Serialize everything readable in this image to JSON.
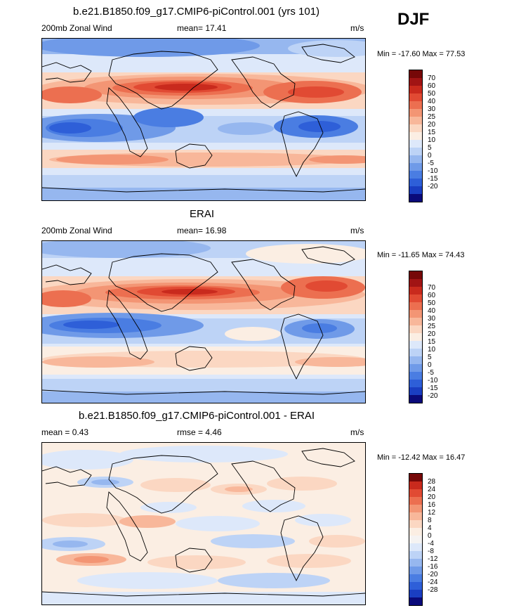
{
  "season": "DJF",
  "colors": {
    "model_erai_scale": [
      "#0a0a7a",
      "#1a3ec2",
      "#2e5fd8",
      "#4a7de2",
      "#6f9ae8",
      "#96b7ef",
      "#bdd3f6",
      "#dde8fa",
      "#fbeee3",
      "#fbd7c2",
      "#f8b79a",
      "#f39574",
      "#ec6f50",
      "#e14a33",
      "#c92a1d",
      "#a11414",
      "#760808"
    ],
    "diff_scale": [
      "#0a0a7a",
      "#1a3ec2",
      "#2e5fd8",
      "#4a7de2",
      "#6f9ae8",
      "#96b7ef",
      "#bdd3f6",
      "#dde8fa",
      "#f5f3f2",
      "#fbeee3",
      "#fbd7c2",
      "#f8b79a",
      "#f39574",
      "#ec6f50",
      "#e14a33",
      "#c92a1d",
      "#760808"
    ]
  },
  "panels": [
    {
      "title": "b.e21.B1850.f09_g17.CMIP6-piControl.001 (yrs 101)",
      "left_label": "200mb Zonal Wind",
      "center_label": "mean=  17.41",
      "units": "m/s",
      "minmax": "Min = -17.60 Max =  77.53",
      "cbar_labels": [
        "70",
        "60",
        "50",
        "40",
        "30",
        "25",
        "20",
        "15",
        "10",
        "5",
        "0",
        "-5",
        "-10",
        "-15",
        "-20"
      ]
    },
    {
      "title": "ERAI",
      "left_label": "200mb Zonal Wind",
      "center_label": "mean=  16.98",
      "units": "m/s",
      "minmax": "Min = -11.65 Max =  74.43",
      "cbar_labels": [
        "70",
        "60",
        "50",
        "40",
        "30",
        "25",
        "20",
        "15",
        "10",
        "5",
        "0",
        "-5",
        "-10",
        "-15",
        "-20"
      ]
    },
    {
      "title": "b.e21.B1850.f09_g17.CMIP6-piControl.001 - ERAI",
      "left_label": "mean =   0.43",
      "center_label": "rmse =   4.46",
      "units": "m/s",
      "minmax": "Min = -12.42 Max =  16.47",
      "cbar_labels": [
        "28",
        "24",
        "20",
        "16",
        "12",
        "8",
        "4",
        "0",
        "-4",
        "-8",
        "-12",
        "-16",
        "-20",
        "-24",
        "-28"
      ]
    }
  ]
}
